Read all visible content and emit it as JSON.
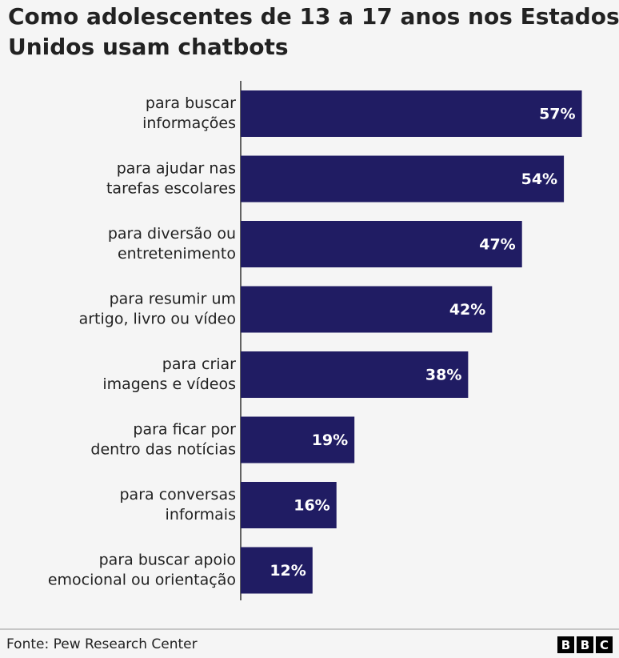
{
  "chart_data": {
    "type": "hbar",
    "title": [
      "Como adolescentes de 13 a 17 anos nos Estados",
      "Unidos usam chatbots"
    ],
    "categories": [
      [
        "para buscar",
        "informações"
      ],
      [
        "para ajudar nas",
        "tarefas escolares"
      ],
      [
        "para diversão ou",
        "entretenimento"
      ],
      [
        "para resumir um",
        "artigo, livro ou vídeo"
      ],
      [
        "para criar",
        "imagens e vídeos"
      ],
      [
        "para ficar por",
        "dentro das notícias"
      ],
      [
        "para conversas",
        "informais"
      ],
      [
        "para buscar apoio",
        "emocional ou orientação"
      ]
    ],
    "values": [
      57,
      54,
      47,
      42,
      38,
      19,
      16,
      12
    ],
    "value_labels": [
      "57%",
      "54%",
      "47%",
      "42%",
      "38%",
      "19%",
      "16%",
      "12%"
    ],
    "color": "#201c63",
    "xlim": [
      0,
      60
    ]
  },
  "footer": {
    "source": "Fonte: Pew Research Center",
    "logo": [
      "B",
      "B",
      "C"
    ]
  }
}
